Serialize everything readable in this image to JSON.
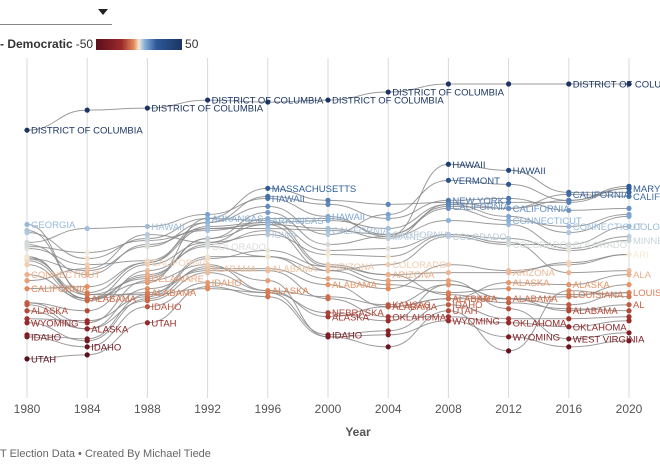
{
  "legend": {
    "label": "- Democratic",
    "min_label": "-50",
    "max_label": "50",
    "colors": [
      "#5a0f1c",
      "#9b2a2a",
      "#e58a5a",
      "#f4ead8",
      "#8cb3dc",
      "#2c5a99",
      "#1b3462"
    ]
  },
  "caption": "T Election Data • Created By Michael Tiede",
  "chart_data": {
    "type": "line",
    "title": "",
    "xlabel": "Year",
    "ylabel": "",
    "x": [
      1980,
      1984,
      1988,
      1992,
      1996,
      2000,
      2004,
      2008,
      2012,
      2016,
      2020
    ],
    "x_ticks": [
      "1980",
      "1984",
      "1988",
      "1992",
      "1996",
      "2000",
      "2004",
      "2008",
      "2012",
      "2016",
      "2020"
    ],
    "y_encoding": "Republican-minus-Democratic margin (points); negative = more Democratic",
    "grid": true,
    "series": [
      {
        "name": "DISTRICT OF COLUMBIA",
        "values": [
          -62,
          -72,
          -73,
          -77,
          -76,
          -77,
          -81,
          -85,
          -85,
          -85,
          -85
        ]
      },
      {
        "name": "HAWAII",
        "values": [
          -6,
          -13,
          -14,
          -20,
          -28,
          -19,
          -9,
          -45,
          -42,
          -31,
          -31
        ]
      },
      {
        "name": "VERMONT",
        "values": [
          -12,
          19,
          4,
          -16,
          -24,
          -10,
          -20,
          -37,
          -35,
          -27,
          -34
        ]
      },
      {
        "name": "MASSACHUSETTS",
        "values": [
          -11,
          2,
          -8,
          -18,
          -33,
          -27,
          -25,
          -26,
          -23,
          -27,
          -33
        ]
      },
      {
        "name": "NEW YORK",
        "values": [
          2,
          8,
          -4,
          -16,
          -29,
          -25,
          -18,
          -27,
          -28,
          -22,
          -23
        ]
      },
      {
        "name": "CALIFORNIA",
        "values": [
          17,
          16,
          4,
          -13,
          -13,
          -12,
          -10,
          -24,
          -23,
          -30,
          -29
        ]
      },
      {
        "name": "MARYLAND",
        "values": [
          -3,
          5,
          3,
          -14,
          -16,
          -17,
          -13,
          -25,
          -26,
          -26,
          -33
        ]
      },
      {
        "name": "GEORGIA",
        "values": [
          -15,
          20,
          20,
          1,
          1,
          12,
          17,
          5,
          8,
          5,
          0
        ]
      },
      {
        "name": "ARKANSAS",
        "values": [
          1,
          22,
          14,
          -18,
          -17,
          5,
          10,
          20,
          24,
          27,
          28
        ]
      },
      {
        "name": "IOWA",
        "values": [
          13,
          7,
          -10,
          -6,
          -10,
          0,
          1,
          -10,
          -6,
          9,
          8
        ]
      },
      {
        "name": "MAINE",
        "values": [
          3,
          22,
          11,
          -8,
          -21,
          -5,
          -9,
          -17,
          -15,
          -3,
          -9
        ]
      },
      {
        "name": "CONNECTICUT",
        "values": [
          10,
          22,
          5,
          -6,
          -18,
          -18,
          -10,
          -23,
          -17,
          -14,
          -20
        ]
      },
      {
        "name": "COLORADO",
        "values": [
          24,
          28,
          8,
          -4,
          1,
          8,
          5,
          -9,
          -5,
          -5,
          -14
        ]
      },
      {
        "name": "MINNESOTA",
        "values": [
          -4,
          -1,
          -7,
          -12,
          -16,
          -2,
          -3,
          -10,
          -8,
          -2,
          -7
        ]
      },
      {
        "name": "ARIZONA",
        "values": [
          32,
          33,
          21,
          2,
          -2,
          6,
          10,
          9,
          9,
          4,
          0
        ]
      },
      {
        "name": "DELAWARE",
        "values": [
          2,
          20,
          12,
          -8,
          -15,
          -13,
          -8,
          -25,
          -19,
          -11,
          -19
        ]
      },
      {
        "name": "ALABAMA",
        "values": [
          1,
          22,
          19,
          7,
          7,
          15,
          26,
          22,
          22,
          28,
          25
        ]
      },
      {
        "name": "IDAHO",
        "values": [
          41,
          46,
          26,
          14,
          19,
          40,
          38,
          25,
          32,
          32,
          31
        ]
      },
      {
        "name": "KANSAS",
        "values": [
          24,
          34,
          13,
          5,
          18,
          21,
          25,
          15,
          22,
          21,
          15
        ]
      },
      {
        "name": "LOUISIANA",
        "values": [
          5,
          23,
          10,
          -5,
          -12,
          8,
          15,
          19,
          17,
          20,
          19
        ]
      },
      {
        "name": "ALASKA",
        "values": [
          28,
          37,
          23,
          9,
          18,
          31,
          26,
          22,
          14,
          15,
          10
        ]
      },
      {
        "name": "NEBRASKA",
        "values": [
          40,
          42,
          20,
          17,
          19,
          29,
          33,
          15,
          22,
          25,
          19
        ]
      },
      {
        "name": "OKLAHOMA",
        "values": [
          25,
          37,
          17,
          8,
          8,
          22,
          31,
          31,
          34,
          36,
          33
        ]
      },
      {
        "name": "WYOMING",
        "values": [
          34,
          43,
          22,
          6,
          13,
          41,
          40,
          33,
          41,
          46,
          43
        ]
      },
      {
        "name": "UTAH",
        "values": [
          52,
          50,
          34,
          16,
          21,
          41,
          46,
          28,
          48,
          18,
          21
        ]
      },
      {
        "name": "WEST VIRGINIA",
        "values": [
          -5,
          10,
          -5,
          -13,
          -15,
          6,
          13,
          13,
          27,
          42,
          39
        ]
      }
    ],
    "visible_labels": [
      {
        "text": "DISTRICT OF COLUMBIA",
        "series": "DISTRICT OF COLUMBIA",
        "year": 1980
      },
      {
        "text": "DISTRICT OF COLUMBIA",
        "series": "DISTRICT OF COLUMBIA",
        "year": 1988
      },
      {
        "text": "DISTRICT OF COLUMBIA",
        "series": "DISTRICT OF COLUMBIA",
        "year": 1992
      },
      {
        "text": "DISTRICT OF COLUMBIA",
        "series": "DISTRICT OF COLUMBIA",
        "year": 2000
      },
      {
        "text": "DISTRICT OF COLUMBIA",
        "series": "DISTRICT OF COLUMBIA",
        "year": 2004
      },
      {
        "text": "DISTRICT OF COLUMBIA",
        "series": "DISTRICT OF COLUMBIA",
        "year": 2016
      },
      {
        "text": "GEORGIA",
        "series": "GEORGIA",
        "year": 1980
      },
      {
        "text": "CONNECTICUT",
        "series": "CONNECTICUT",
        "year": 1980
      },
      {
        "text": "CALIFORNIA",
        "series": "CALIFORNIA",
        "year": 1980
      },
      {
        "text": "ALASKA",
        "series": "ALASKA",
        "year": 1980
      },
      {
        "text": "WYOMING",
        "series": "WYOMING",
        "year": 1980
      },
      {
        "text": "IDAHO",
        "series": "IDAHO",
        "year": 1980
      },
      {
        "text": "UTAH",
        "series": "UTAH",
        "year": 1980
      },
      {
        "text": "ALABAMA",
        "series": "ALABAMA",
        "year": 1984
      },
      {
        "text": "ALASKA",
        "series": "ALASKA",
        "year": 1984
      },
      {
        "text": "IDAHO",
        "series": "IDAHO",
        "year": 1984
      },
      {
        "text": "HAWAII",
        "series": "HAWAII",
        "year": 1988
      },
      {
        "text": "CALIFORNIA",
        "series": "CALIFORNIA",
        "year": 1988
      },
      {
        "text": "DELAWARE",
        "series": "DELAWARE",
        "year": 1988
      },
      {
        "text": "ALABAMA",
        "series": "ALABAMA",
        "year": 1988
      },
      {
        "text": "IDAHO",
        "series": "IDAHO",
        "year": 1988
      },
      {
        "text": "UTAH",
        "series": "UTAH",
        "year": 1988
      },
      {
        "text": "ARKANSAS",
        "series": "ARKANSAS",
        "year": 1992
      },
      {
        "text": "COLORADO",
        "series": "COLORADO",
        "year": 1992
      },
      {
        "text": "ALABAMA",
        "series": "ALABAMA",
        "year": 1992
      },
      {
        "text": "IDAHO",
        "series": "IDAHO",
        "year": 1992
      },
      {
        "text": "MASSACHUSETTS",
        "series": "MASSACHUSETTS",
        "year": 1996
      },
      {
        "text": "HAWAII",
        "series": "HAWAII",
        "year": 1996
      },
      {
        "text": "ARKANSAS",
        "series": "ARKANSAS",
        "year": 1996
      },
      {
        "text": "IOWA",
        "series": "IOWA",
        "year": 1996
      },
      {
        "text": "ALABAMA",
        "series": "ALABAMA",
        "year": 1996
      },
      {
        "text": "ALASKA",
        "series": "ALASKA",
        "year": 1996
      },
      {
        "text": "HAWAII",
        "series": "HAWAII",
        "year": 2000
      },
      {
        "text": "CALIFORNIA",
        "series": "CALIFORNIA",
        "year": 2000
      },
      {
        "text": "ARIZONA",
        "series": "ARIZONA",
        "year": 2000
      },
      {
        "text": "ALABAMA",
        "series": "ALABAMA",
        "year": 2000
      },
      {
        "text": "ALASKA",
        "series": "ALASKA",
        "year": 2000
      },
      {
        "text": "NEBRASKA",
        "series": "NEBRASKA",
        "year": 2000
      },
      {
        "text": "IDAHO",
        "series": "IDAHO",
        "year": 2000
      },
      {
        "text": "CALIFORNIA",
        "series": "CALIFORNIA",
        "year": 2004
      },
      {
        "text": "MAINE",
        "series": "MAINE",
        "year": 2004
      },
      {
        "text": "COLORADO",
        "series": "COLORADO",
        "year": 2004
      },
      {
        "text": "ARIZONA",
        "series": "ARIZONA",
        "year": 2004
      },
      {
        "text": "KANSAS",
        "series": "KANSAS",
        "year": 2004
      },
      {
        "text": "ALABAMA",
        "series": "ALABAMA",
        "year": 2004
      },
      {
        "text": "OKLAHOMA",
        "series": "OKLAHOMA",
        "year": 2004
      },
      {
        "text": "HAWAII",
        "series": "HAWAII",
        "year": 2008
      },
      {
        "text": "VERMONT",
        "series": "VERMONT",
        "year": 2008
      },
      {
        "text": "NEW YORK",
        "series": "NEW YORK",
        "year": 2008
      },
      {
        "text": "CALIFORNIA",
        "series": "CALIFORNIA",
        "year": 2008
      },
      {
        "text": "COLORADO",
        "series": "COLORADO",
        "year": 2008
      },
      {
        "text": "ALASKA",
        "series": "ALASKA",
        "year": 2008
      },
      {
        "text": "ALABAMA",
        "series": "ALABAMA",
        "year": 2008
      },
      {
        "text": "IDAHO",
        "series": "IDAHO",
        "year": 2008
      },
      {
        "text": "WYOMING",
        "series": "WYOMING",
        "year": 2008
      },
      {
        "text": "UTAH",
        "series": "UTAH",
        "year": 2008
      },
      {
        "text": "HAWAII",
        "series": "HAWAII",
        "year": 2012
      },
      {
        "text": "CALIFORNIA",
        "series": "CALIFORNIA",
        "year": 2012
      },
      {
        "text": "CONNECTICUT",
        "series": "CONNECTICUT",
        "year": 2012
      },
      {
        "text": "COLORADO",
        "series": "COLORADO",
        "year": 2012
      },
      {
        "text": "ARIZONA",
        "series": "ARIZONA",
        "year": 2012
      },
      {
        "text": "ALASKA",
        "series": "ALASKA",
        "year": 2012
      },
      {
        "text": "ALABAMA",
        "series": "ALABAMA",
        "year": 2012
      },
      {
        "text": "OKLAHOMA",
        "series": "OKLAHOMA",
        "year": 2012
      },
      {
        "text": "WYOMING",
        "series": "WYOMING",
        "year": 2012
      },
      {
        "text": "CALIFORNIA",
        "series": "CALIFORNIA",
        "year": 2016
      },
      {
        "text": "CONNECTICUT",
        "series": "CONNECTICUT",
        "year": 2016
      },
      {
        "text": "COLORADO",
        "series": "COLORADO",
        "year": 2016
      },
      {
        "text": "ALASKA",
        "series": "ALASKA",
        "year": 2016
      },
      {
        "text": "LOUISIANA",
        "series": "LOUISIANA",
        "year": 2016
      },
      {
        "text": "ALABAMA",
        "series": "ALABAMA",
        "year": 2016
      },
      {
        "text": "OKLAHOMA",
        "series": "OKLAHOMA",
        "year": 2016
      },
      {
        "text": "WEST VIRGINIA",
        "series": "WEST VIRGINIA",
        "year": 2016
      },
      {
        "text": "MARY",
        "series": "MARYLAND",
        "year": 2020
      },
      {
        "text": "CALIF",
        "series": "CALIFORNIA",
        "year": 2020
      },
      {
        "text": "COLO",
        "series": "COLORADO",
        "year": 2020
      },
      {
        "text": "MINNE",
        "series": "MINNESOTA",
        "year": 2020
      },
      {
        "text": "ARI",
        "series": "ARIZONA",
        "year": 2020
      },
      {
        "text": "AL",
        "series": "ALABAMA",
        "year": 2020
      },
      {
        "text": "LOUIS",
        "series": "LOUISIANA",
        "year": 2020
      },
      {
        "text": "ALA",
        "series": "ALASKA",
        "year": 2020
      }
    ],
    "ylim": [
      -88,
      70
    ]
  }
}
